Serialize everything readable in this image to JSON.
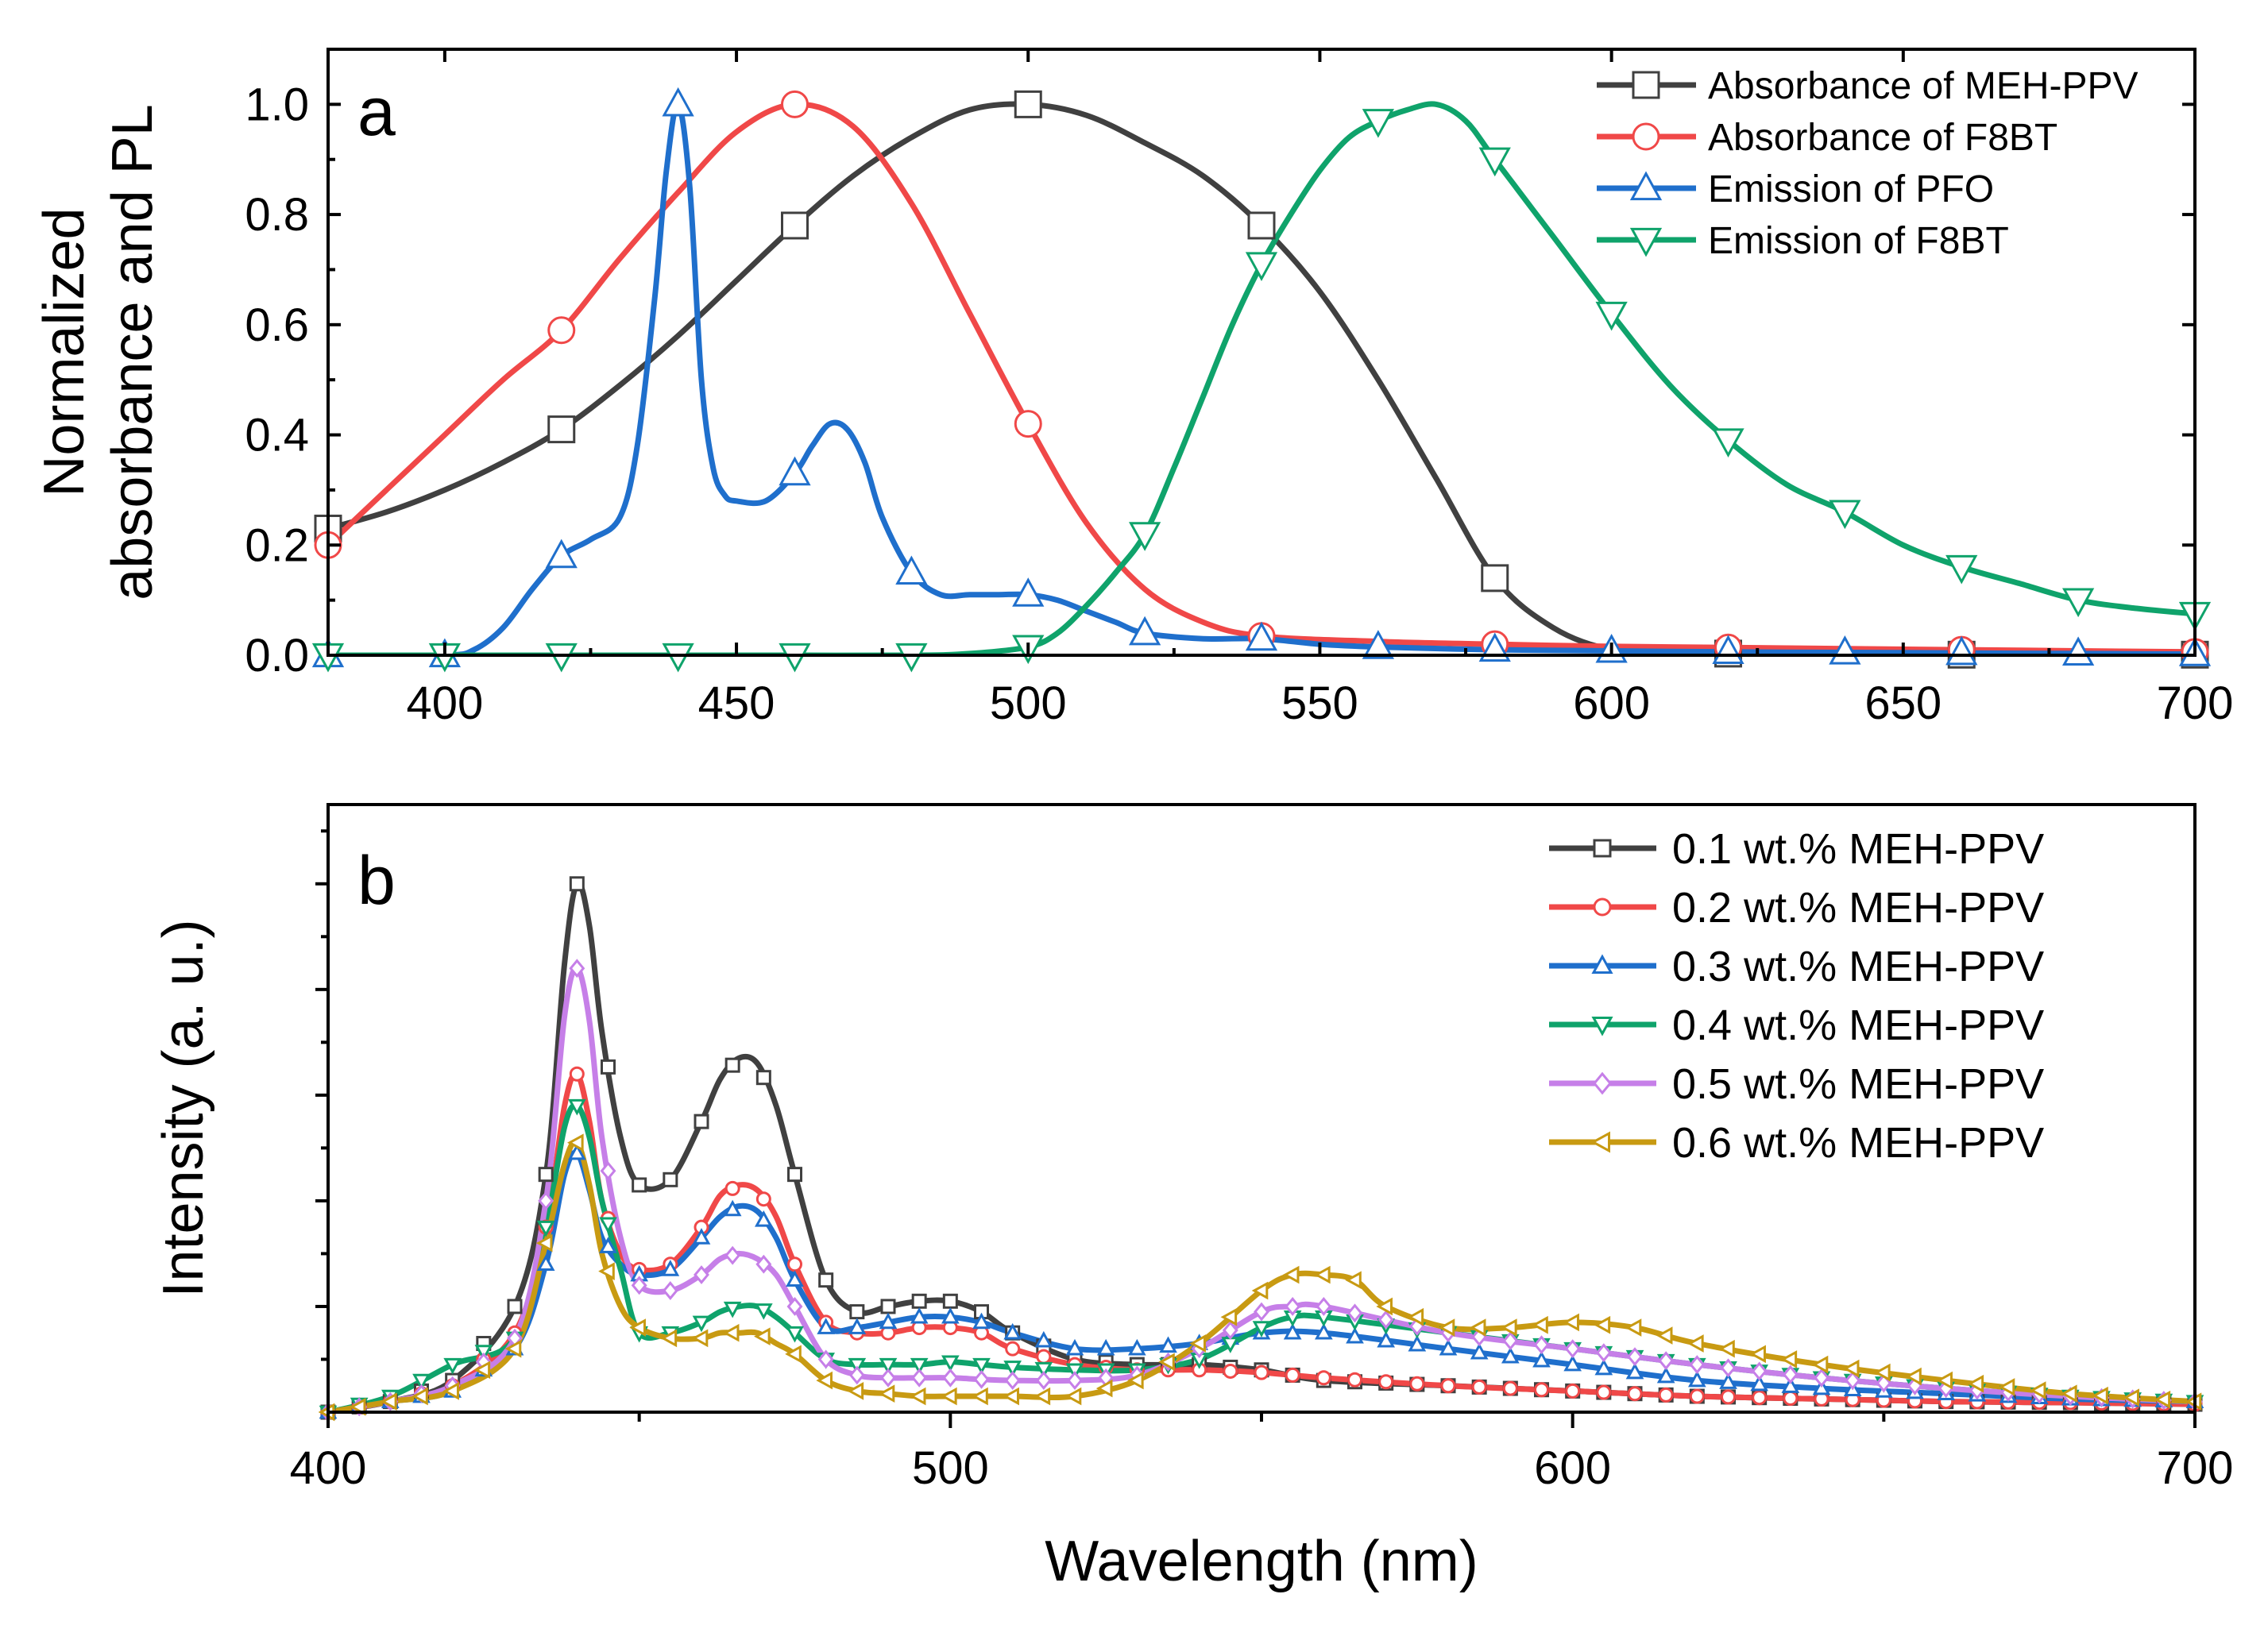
{
  "chart_data": [
    {
      "panel": "a",
      "type": "line",
      "ylabel_lines": [
        "Normalized",
        "absorbance and PL"
      ],
      "xlabel": "",
      "xlim": [
        380,
        700
      ],
      "ylim": [
        0,
        1.1
      ],
      "xticks": [
        400,
        450,
        500,
        550,
        600,
        650,
        700
      ],
      "xtick_labels": [
        "400",
        "450",
        "500",
        "550",
        "600",
        "650",
        "700"
      ],
      "yticks": [
        0,
        0.2,
        0.4,
        0.6,
        0.8,
        1.0
      ],
      "ytick_labels": [
        "0.0",
        "0.2",
        "0.4",
        "0.6",
        "0.8",
        "1.0"
      ],
      "legend_position": "top-right",
      "series": [
        {
          "name": "Absorbance of MEH-PPV",
          "color": "#404040",
          "marker": "square",
          "x": [
            380,
            390,
            400,
            410,
            420,
            430,
            440,
            450,
            460,
            470,
            480,
            490,
            500,
            510,
            520,
            530,
            540,
            550,
            560,
            570,
            580,
            590,
            600,
            610,
            620,
            640,
            660,
            680,
            700
          ],
          "y": [
            0.23,
            0.26,
            0.3,
            0.35,
            0.41,
            0.49,
            0.58,
            0.68,
            0.78,
            0.87,
            0.94,
            0.99,
            1.0,
            0.98,
            0.93,
            0.87,
            0.78,
            0.66,
            0.5,
            0.32,
            0.14,
            0.05,
            0.01,
            0.005,
            0.003,
            0.002,
            0.001,
            0.001,
            0.001
          ],
          "markers_x": [
            380,
            420,
            460,
            500,
            540,
            580,
            620,
            660,
            700
          ]
        },
        {
          "name": "Absorbance of F8BT",
          "color": "#f04848",
          "marker": "circle",
          "x": [
            380,
            390,
            400,
            410,
            420,
            430,
            440,
            450,
            460,
            470,
            480,
            490,
            500,
            510,
            520,
            530,
            540,
            560,
            580,
            600,
            620,
            640,
            660,
            680,
            700
          ],
          "y": [
            0.2,
            0.3,
            0.4,
            0.5,
            0.59,
            0.72,
            0.84,
            0.95,
            1.0,
            0.96,
            0.82,
            0.62,
            0.42,
            0.24,
            0.12,
            0.06,
            0.035,
            0.025,
            0.02,
            0.016,
            0.014,
            0.012,
            0.01,
            0.008,
            0.006
          ],
          "markers_x": [
            380,
            420,
            460,
            500,
            540,
            580,
            620,
            660,
            700
          ]
        },
        {
          "name": "Emission of PFO",
          "color": "#1f6fcc",
          "marker": "triangle-up",
          "x": [
            380,
            400,
            405,
            410,
            415,
            420,
            425,
            430,
            433,
            436,
            438,
            440,
            442,
            444,
            446,
            448,
            450,
            455,
            460,
            463,
            466,
            469,
            472,
            475,
            480,
            485,
            490,
            495,
            500,
            505,
            510,
            515,
            520,
            530,
            540,
            550,
            560,
            580,
            600,
            620,
            640,
            660,
            680,
            700
          ],
          "y": [
            0.0,
            0.0,
            0.01,
            0.05,
            0.12,
            0.18,
            0.21,
            0.25,
            0.38,
            0.65,
            0.88,
            1.0,
            0.85,
            0.5,
            0.34,
            0.29,
            0.28,
            0.28,
            0.33,
            0.38,
            0.42,
            0.41,
            0.35,
            0.25,
            0.15,
            0.11,
            0.11,
            0.11,
            0.11,
            0.1,
            0.08,
            0.06,
            0.04,
            0.03,
            0.03,
            0.02,
            0.015,
            0.01,
            0.008,
            0.006,
            0.005,
            0.004,
            0.003,
            0.002
          ],
          "markers_x": [
            380,
            400,
            420,
            440,
            460,
            480,
            500,
            520,
            540,
            560,
            580,
            600,
            620,
            640,
            660,
            680,
            700
          ]
        },
        {
          "name": "Emission of F8BT",
          "color": "#0fa36b",
          "marker": "triangle-down",
          "x": [
            380,
            400,
            420,
            440,
            460,
            480,
            490,
            500,
            505,
            510,
            515,
            520,
            525,
            530,
            535,
            540,
            545,
            550,
            555,
            560,
            565,
            570,
            575,
            580,
            590,
            600,
            610,
            620,
            630,
            640,
            650,
            660,
            670,
            680,
            690,
            700
          ],
          "y": [
            0.0,
            0.0,
            0.0,
            0.0,
            0.0,
            0.0,
            0.003,
            0.015,
            0.04,
            0.09,
            0.15,
            0.22,
            0.34,
            0.47,
            0.6,
            0.71,
            0.8,
            0.88,
            0.94,
            0.97,
            0.99,
            1.0,
            0.97,
            0.9,
            0.76,
            0.62,
            0.49,
            0.39,
            0.31,
            0.26,
            0.2,
            0.16,
            0.13,
            0.1,
            0.085,
            0.075
          ],
          "markers_x": [
            380,
            400,
            420,
            440,
            460,
            480,
            500,
            520,
            540,
            560,
            580,
            600,
            620,
            640,
            660,
            680,
            700
          ]
        }
      ]
    },
    {
      "panel": "b",
      "type": "line",
      "ylabel": "Intensity (a. u.)",
      "xlabel": "Wavelength (nm)",
      "xlim": [
        400,
        700
      ],
      "ylim": [
        0,
        1.15
      ],
      "xticks": [
        400,
        500,
        600,
        700
      ],
      "xtick_labels": [
        "400",
        "500",
        "600",
        "700"
      ],
      "minor_xticks": [
        450,
        550,
        650
      ],
      "yticks_unlabeled": [
        0.2,
        0.4,
        0.6,
        0.8,
        1.0
      ],
      "legend_position": "top-right",
      "series": [
        {
          "name": "0.1 wt.% MEH-PPV",
          "color": "#404040",
          "marker": "square",
          "x": [
            400,
            410,
            420,
            430,
            435,
            438,
            440,
            442,
            444,
            447,
            450,
            455,
            460,
            463,
            466,
            469,
            472,
            475,
            480,
            485,
            490,
            495,
            500,
            505,
            510,
            520,
            530,
            540,
            550,
            560,
            580,
            600,
            620,
            640,
            660,
            680,
            700
          ],
          "y": [
            0.0,
            0.02,
            0.06,
            0.2,
            0.45,
            0.85,
            1.0,
            0.92,
            0.72,
            0.52,
            0.43,
            0.44,
            0.55,
            0.63,
            0.67,
            0.66,
            0.58,
            0.45,
            0.25,
            0.19,
            0.2,
            0.21,
            0.21,
            0.19,
            0.15,
            0.1,
            0.09,
            0.09,
            0.08,
            0.06,
            0.05,
            0.04,
            0.03,
            0.025,
            0.02,
            0.018,
            0.015
          ]
        },
        {
          "name": "0.2 wt.% MEH-PPV",
          "color": "#f04848",
          "marker": "circle",
          "x": [
            400,
            410,
            420,
            430,
            435,
            438,
            440,
            442,
            444,
            447,
            450,
            455,
            460,
            463,
            466,
            469,
            472,
            475,
            480,
            485,
            490,
            495,
            500,
            505,
            510,
            520,
            530,
            540,
            550,
            560,
            580,
            600,
            620,
            640,
            660,
            680,
            700
          ],
          "y": [
            0.0,
            0.02,
            0.05,
            0.15,
            0.35,
            0.58,
            0.64,
            0.55,
            0.4,
            0.3,
            0.27,
            0.28,
            0.35,
            0.41,
            0.43,
            0.42,
            0.37,
            0.28,
            0.17,
            0.15,
            0.15,
            0.16,
            0.16,
            0.15,
            0.12,
            0.09,
            0.08,
            0.08,
            0.075,
            0.065,
            0.05,
            0.04,
            0.03,
            0.025,
            0.02,
            0.018,
            0.015
          ]
        },
        {
          "name": "0.3 wt.% MEH-PPV",
          "color": "#1f6fcc",
          "marker": "triangle-up",
          "x": [
            400,
            410,
            420,
            430,
            435,
            438,
            440,
            442,
            444,
            447,
            450,
            455,
            460,
            463,
            466,
            469,
            472,
            475,
            480,
            485,
            490,
            495,
            500,
            505,
            510,
            520,
            530,
            540,
            550,
            560,
            580,
            600,
            620,
            640,
            660,
            680,
            700
          ],
          "y": [
            0.0,
            0.02,
            0.04,
            0.12,
            0.28,
            0.45,
            0.49,
            0.42,
            0.33,
            0.28,
            0.26,
            0.27,
            0.33,
            0.37,
            0.39,
            0.38,
            0.33,
            0.25,
            0.16,
            0.16,
            0.17,
            0.18,
            0.18,
            0.17,
            0.15,
            0.12,
            0.12,
            0.13,
            0.15,
            0.15,
            0.12,
            0.09,
            0.06,
            0.045,
            0.035,
            0.025,
            0.02
          ]
        },
        {
          "name": "0.4 wt.% MEH-PPV",
          "color": "#0fa36b",
          "marker": "triangle-down",
          "x": [
            400,
            410,
            420,
            430,
            435,
            438,
            440,
            442,
            444,
            447,
            450,
            455,
            460,
            463,
            466,
            469,
            472,
            475,
            480,
            485,
            490,
            495,
            500,
            505,
            510,
            520,
            530,
            540,
            550,
            555,
            560,
            580,
            600,
            620,
            640,
            660,
            680,
            700
          ],
          "y": [
            0.0,
            0.03,
            0.09,
            0.14,
            0.35,
            0.54,
            0.58,
            0.52,
            0.4,
            0.27,
            0.15,
            0.15,
            0.17,
            0.19,
            0.2,
            0.2,
            0.18,
            0.15,
            0.1,
            0.09,
            0.09,
            0.09,
            0.095,
            0.09,
            0.085,
            0.08,
            0.08,
            0.1,
            0.16,
            0.18,
            0.18,
            0.15,
            0.12,
            0.09,
            0.065,
            0.045,
            0.03,
            0.02
          ]
        },
        {
          "name": "0.5 wt.% MEH-PPV",
          "color": "#c67fe8",
          "marker": "diamond",
          "x": [
            400,
            410,
            420,
            430,
            435,
            438,
            440,
            442,
            444,
            447,
            450,
            455,
            460,
            463,
            466,
            469,
            472,
            475,
            480,
            485,
            490,
            495,
            500,
            505,
            510,
            520,
            530,
            540,
            550,
            555,
            560,
            580,
            600,
            620,
            640,
            660,
            680,
            700
          ],
          "y": [
            0.0,
            0.02,
            0.05,
            0.14,
            0.4,
            0.75,
            0.84,
            0.74,
            0.52,
            0.33,
            0.24,
            0.23,
            0.26,
            0.29,
            0.3,
            0.29,
            0.26,
            0.2,
            0.1,
            0.07,
            0.065,
            0.065,
            0.065,
            0.062,
            0.06,
            0.06,
            0.07,
            0.12,
            0.19,
            0.2,
            0.2,
            0.15,
            0.12,
            0.09,
            0.065,
            0.045,
            0.03,
            0.02
          ]
        },
        {
          "name": "0.6 wt.% MEH-PPV",
          "color": "#c89a12",
          "marker": "triangle-left",
          "x": [
            400,
            410,
            420,
            430,
            435,
            438,
            440,
            442,
            444,
            447,
            450,
            455,
            460,
            463,
            466,
            469,
            472,
            475,
            480,
            485,
            490,
            495,
            500,
            505,
            510,
            520,
            530,
            540,
            550,
            555,
            560,
            565,
            570,
            580,
            590,
            600,
            610,
            620,
            640,
            660,
            680,
            700
          ],
          "y": [
            0.0,
            0.02,
            0.04,
            0.12,
            0.32,
            0.47,
            0.51,
            0.43,
            0.3,
            0.2,
            0.16,
            0.14,
            0.14,
            0.15,
            0.15,
            0.15,
            0.13,
            0.11,
            0.06,
            0.04,
            0.035,
            0.03,
            0.03,
            0.03,
            0.03,
            0.03,
            0.06,
            0.13,
            0.23,
            0.26,
            0.26,
            0.25,
            0.2,
            0.16,
            0.16,
            0.17,
            0.16,
            0.13,
            0.09,
            0.06,
            0.035,
            0.02
          ]
        }
      ]
    }
  ]
}
